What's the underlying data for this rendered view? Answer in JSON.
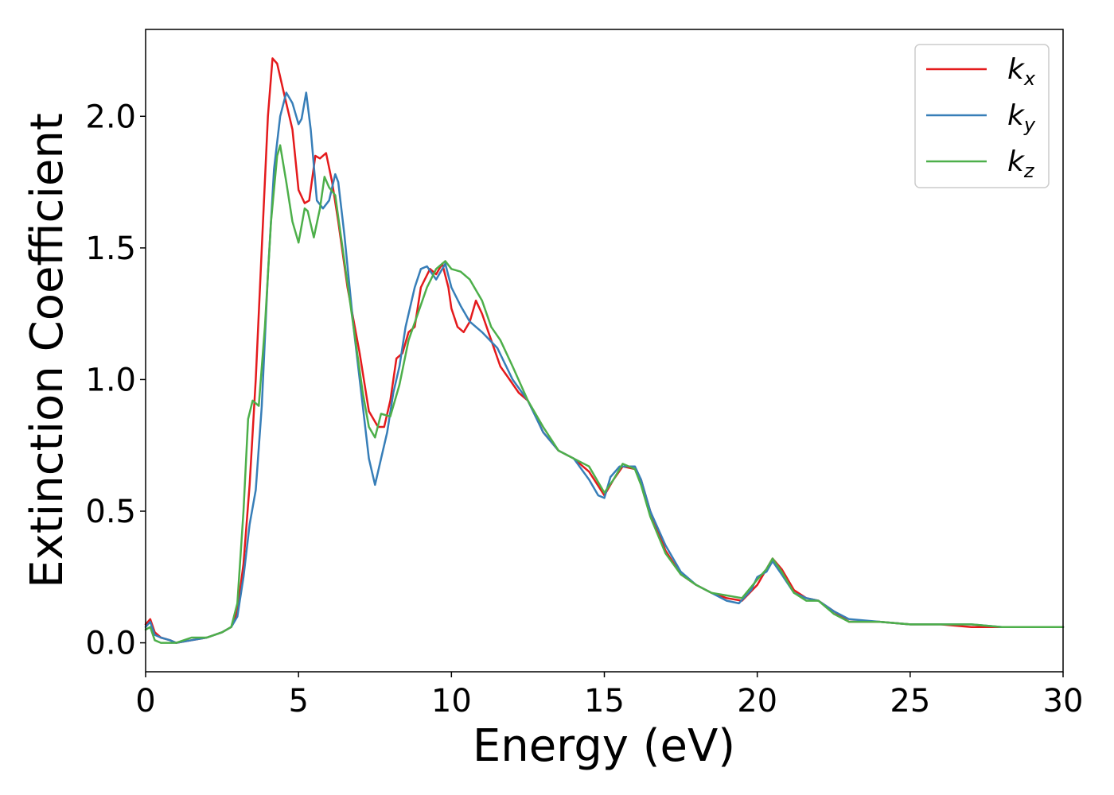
{
  "chart_data": {
    "type": "line",
    "title": "",
    "xlabel": "Energy (eV)",
    "ylabel": "Extinction Coefficient",
    "xlim": [
      0,
      30
    ],
    "ylim": [
      -0.11,
      2.33
    ],
    "xticks": [
      0,
      5,
      10,
      15,
      20,
      25,
      30
    ],
    "xtick_labels": [
      "0",
      "5",
      "10",
      "15",
      "20",
      "25",
      "30"
    ],
    "yticks": [
      0.0,
      0.5,
      1.0,
      1.5,
      2.0
    ],
    "ytick_labels": [
      "0.0",
      "0.5",
      "1.0",
      "1.5",
      "2.0"
    ],
    "grid": false,
    "legend_position": "top-right",
    "series": [
      {
        "name": "k_x",
        "label_base": "k",
        "label_sub": "x",
        "color": "#e41a1c",
        "points": [
          [
            0,
            0.07
          ],
          [
            0.15,
            0.09
          ],
          [
            0.3,
            0.04
          ],
          [
            0.5,
            0.02
          ],
          [
            0.8,
            0.01
          ],
          [
            1.0,
            0.0
          ],
          [
            1.5,
            0.01
          ],
          [
            2.0,
            0.02
          ],
          [
            2.5,
            0.04
          ],
          [
            2.8,
            0.06
          ],
          [
            3.0,
            0.12
          ],
          [
            3.2,
            0.3
          ],
          [
            3.4,
            0.6
          ],
          [
            3.6,
            1.0
          ],
          [
            3.8,
            1.5
          ],
          [
            4.0,
            2.0
          ],
          [
            4.15,
            2.22
          ],
          [
            4.3,
            2.2
          ],
          [
            4.5,
            2.1
          ],
          [
            4.8,
            1.95
          ],
          [
            5.0,
            1.72
          ],
          [
            5.2,
            1.67
          ],
          [
            5.35,
            1.68
          ],
          [
            5.55,
            1.85
          ],
          [
            5.7,
            1.84
          ],
          [
            5.9,
            1.86
          ],
          [
            6.1,
            1.75
          ],
          [
            6.3,
            1.6
          ],
          [
            6.6,
            1.35
          ],
          [
            7.0,
            1.1
          ],
          [
            7.3,
            0.88
          ],
          [
            7.6,
            0.82
          ],
          [
            7.8,
            0.82
          ],
          [
            8.0,
            0.92
          ],
          [
            8.2,
            1.08
          ],
          [
            8.4,
            1.1
          ],
          [
            8.6,
            1.18
          ],
          [
            8.8,
            1.2
          ],
          [
            9.0,
            1.35
          ],
          [
            9.3,
            1.42
          ],
          [
            9.5,
            1.4
          ],
          [
            9.7,
            1.44
          ],
          [
            9.9,
            1.35
          ],
          [
            10.0,
            1.27
          ],
          [
            10.2,
            1.2
          ],
          [
            10.4,
            1.18
          ],
          [
            10.6,
            1.22
          ],
          [
            10.8,
            1.3
          ],
          [
            11.0,
            1.25
          ],
          [
            11.3,
            1.15
          ],
          [
            11.6,
            1.05
          ],
          [
            11.9,
            1.0
          ],
          [
            12.2,
            0.95
          ],
          [
            12.5,
            0.92
          ],
          [
            12.8,
            0.85
          ],
          [
            13.0,
            0.8
          ],
          [
            13.5,
            0.73
          ],
          [
            14.0,
            0.7
          ],
          [
            14.5,
            0.65
          ],
          [
            15.0,
            0.56
          ],
          [
            15.3,
            0.62
          ],
          [
            15.6,
            0.67
          ],
          [
            16.0,
            0.66
          ],
          [
            16.2,
            0.62
          ],
          [
            16.5,
            0.5
          ],
          [
            17.0,
            0.35
          ],
          [
            17.5,
            0.26
          ],
          [
            18.0,
            0.22
          ],
          [
            18.5,
            0.19
          ],
          [
            19.0,
            0.17
          ],
          [
            19.5,
            0.16
          ],
          [
            20.0,
            0.22
          ],
          [
            20.3,
            0.28
          ],
          [
            20.5,
            0.32
          ],
          [
            20.8,
            0.28
          ],
          [
            21.2,
            0.2
          ],
          [
            21.6,
            0.17
          ],
          [
            22.0,
            0.16
          ],
          [
            22.5,
            0.12
          ],
          [
            23.0,
            0.08
          ],
          [
            24.0,
            0.08
          ],
          [
            25.0,
            0.07
          ],
          [
            26.0,
            0.07
          ],
          [
            27.0,
            0.06
          ],
          [
            28.0,
            0.06
          ],
          [
            29.0,
            0.06
          ],
          [
            30.0,
            0.06
          ]
        ]
      },
      {
        "name": "k_y",
        "label_base": "k",
        "label_sub": "y",
        "color": "#377eb8",
        "points": [
          [
            0,
            0.06
          ],
          [
            0.15,
            0.08
          ],
          [
            0.3,
            0.03
          ],
          [
            0.5,
            0.02
          ],
          [
            0.8,
            0.01
          ],
          [
            1.0,
            0.0
          ],
          [
            1.5,
            0.01
          ],
          [
            2.0,
            0.02
          ],
          [
            2.5,
            0.04
          ],
          [
            2.8,
            0.06
          ],
          [
            3.0,
            0.1
          ],
          [
            3.2,
            0.25
          ],
          [
            3.4,
            0.45
          ],
          [
            3.6,
            0.58
          ],
          [
            3.8,
            0.9
          ],
          [
            4.0,
            1.4
          ],
          [
            4.2,
            1.8
          ],
          [
            4.4,
            2.0
          ],
          [
            4.6,
            2.09
          ],
          [
            4.8,
            2.05
          ],
          [
            5.0,
            1.97
          ],
          [
            5.1,
            1.99
          ],
          [
            5.25,
            2.09
          ],
          [
            5.4,
            1.95
          ],
          [
            5.6,
            1.68
          ],
          [
            5.8,
            1.65
          ],
          [
            6.0,
            1.68
          ],
          [
            6.2,
            1.78
          ],
          [
            6.3,
            1.75
          ],
          [
            6.5,
            1.55
          ],
          [
            6.8,
            1.2
          ],
          [
            7.1,
            0.9
          ],
          [
            7.3,
            0.7
          ],
          [
            7.5,
            0.6
          ],
          [
            7.7,
            0.7
          ],
          [
            7.9,
            0.8
          ],
          [
            8.1,
            0.95
          ],
          [
            8.3,
            1.05
          ],
          [
            8.5,
            1.2
          ],
          [
            8.8,
            1.35
          ],
          [
            9.0,
            1.42
          ],
          [
            9.2,
            1.43
          ],
          [
            9.5,
            1.38
          ],
          [
            9.8,
            1.44
          ],
          [
            10.0,
            1.35
          ],
          [
            10.3,
            1.28
          ],
          [
            10.6,
            1.22
          ],
          [
            11.0,
            1.18
          ],
          [
            11.5,
            1.12
          ],
          [
            12.0,
            1.0
          ],
          [
            12.5,
            0.92
          ],
          [
            13.0,
            0.8
          ],
          [
            13.5,
            0.73
          ],
          [
            14.0,
            0.7
          ],
          [
            14.5,
            0.62
          ],
          [
            14.8,
            0.56
          ],
          [
            15.0,
            0.55
          ],
          [
            15.2,
            0.63
          ],
          [
            15.5,
            0.67
          ],
          [
            16.0,
            0.67
          ],
          [
            16.2,
            0.62
          ],
          [
            16.5,
            0.5
          ],
          [
            17.0,
            0.37
          ],
          [
            17.5,
            0.27
          ],
          [
            18.0,
            0.22
          ],
          [
            18.5,
            0.19
          ],
          [
            19.0,
            0.16
          ],
          [
            19.4,
            0.15
          ],
          [
            19.8,
            0.2
          ],
          [
            20.0,
            0.25
          ],
          [
            20.3,
            0.27
          ],
          [
            20.5,
            0.31
          ],
          [
            20.8,
            0.26
          ],
          [
            21.2,
            0.19
          ],
          [
            21.6,
            0.17
          ],
          [
            22.0,
            0.16
          ],
          [
            22.5,
            0.12
          ],
          [
            23.0,
            0.09
          ],
          [
            24.0,
            0.08
          ],
          [
            25.0,
            0.07
          ],
          [
            26.0,
            0.07
          ],
          [
            27.0,
            0.07
          ],
          [
            28.0,
            0.06
          ],
          [
            29.0,
            0.06
          ],
          [
            30.0,
            0.06
          ]
        ]
      },
      {
        "name": "k_z",
        "label_base": "k",
        "label_sub": "z",
        "color": "#4daf4a",
        "points": [
          [
            0,
            0.05
          ],
          [
            0.15,
            0.06
          ],
          [
            0.3,
            0.01
          ],
          [
            0.5,
            0.0
          ],
          [
            0.8,
            0.0
          ],
          [
            1.0,
            0.0
          ],
          [
            1.5,
            0.02
          ],
          [
            2.0,
            0.02
          ],
          [
            2.5,
            0.04
          ],
          [
            2.8,
            0.06
          ],
          [
            3.0,
            0.15
          ],
          [
            3.2,
            0.5
          ],
          [
            3.35,
            0.85
          ],
          [
            3.5,
            0.92
          ],
          [
            3.7,
            0.9
          ],
          [
            3.9,
            1.2
          ],
          [
            4.1,
            1.6
          ],
          [
            4.3,
            1.85
          ],
          [
            4.4,
            1.89
          ],
          [
            4.6,
            1.75
          ],
          [
            4.8,
            1.6
          ],
          [
            5.0,
            1.52
          ],
          [
            5.2,
            1.65
          ],
          [
            5.3,
            1.64
          ],
          [
            5.5,
            1.54
          ],
          [
            5.7,
            1.65
          ],
          [
            5.85,
            1.77
          ],
          [
            6.0,
            1.73
          ],
          [
            6.2,
            1.7
          ],
          [
            6.5,
            1.45
          ],
          [
            6.8,
            1.2
          ],
          [
            7.1,
            0.95
          ],
          [
            7.3,
            0.82
          ],
          [
            7.5,
            0.78
          ],
          [
            7.7,
            0.87
          ],
          [
            8.0,
            0.86
          ],
          [
            8.3,
            0.98
          ],
          [
            8.6,
            1.15
          ],
          [
            8.9,
            1.25
          ],
          [
            9.2,
            1.35
          ],
          [
            9.5,
            1.42
          ],
          [
            9.8,
            1.45
          ],
          [
            10.0,
            1.42
          ],
          [
            10.3,
            1.41
          ],
          [
            10.6,
            1.38
          ],
          [
            11.0,
            1.3
          ],
          [
            11.3,
            1.2
          ],
          [
            11.6,
            1.15
          ],
          [
            12.0,
            1.05
          ],
          [
            12.5,
            0.92
          ],
          [
            13.0,
            0.82
          ],
          [
            13.5,
            0.73
          ],
          [
            14.0,
            0.7
          ],
          [
            14.5,
            0.67
          ],
          [
            15.0,
            0.57
          ],
          [
            15.3,
            0.62
          ],
          [
            15.6,
            0.68
          ],
          [
            16.0,
            0.66
          ],
          [
            16.2,
            0.6
          ],
          [
            16.5,
            0.48
          ],
          [
            17.0,
            0.34
          ],
          [
            17.5,
            0.26
          ],
          [
            18.0,
            0.22
          ],
          [
            18.5,
            0.19
          ],
          [
            19.0,
            0.18
          ],
          [
            19.5,
            0.17
          ],
          [
            20.0,
            0.24
          ],
          [
            20.3,
            0.28
          ],
          [
            20.5,
            0.32
          ],
          [
            20.8,
            0.27
          ],
          [
            21.2,
            0.19
          ],
          [
            21.6,
            0.16
          ],
          [
            22.0,
            0.16
          ],
          [
            22.5,
            0.11
          ],
          [
            23.0,
            0.08
          ],
          [
            24.0,
            0.08
          ],
          [
            25.0,
            0.07
          ],
          [
            26.0,
            0.07
          ],
          [
            27.0,
            0.07
          ],
          [
            28.0,
            0.06
          ],
          [
            29.0,
            0.06
          ],
          [
            30.0,
            0.06
          ]
        ]
      }
    ]
  }
}
